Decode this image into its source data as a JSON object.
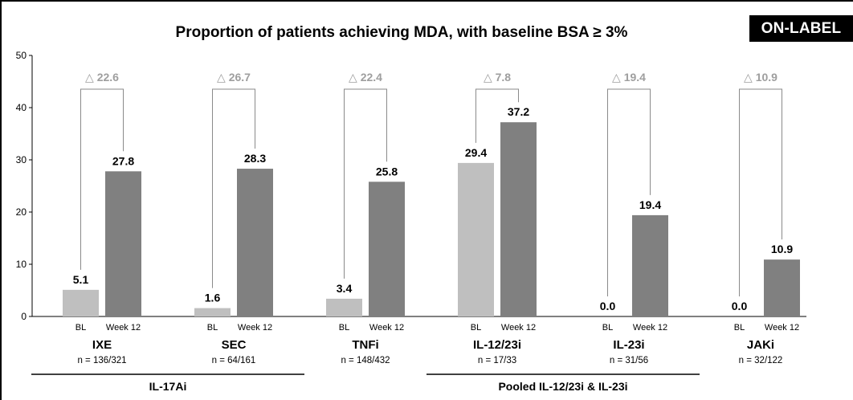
{
  "badge": "ON-LABEL",
  "chart_data": {
    "type": "bar",
    "title": "Proportion of patients achieving MDA, with baseline BSA ≥ 3%",
    "ylim": [
      0,
      50
    ],
    "yticks": [
      0,
      10,
      20,
      30,
      40,
      50
    ],
    "grid": false,
    "subcategories": [
      "BL",
      "Week 12"
    ],
    "colors": {
      "BL": "#bfbfbf",
      "Week 12": "#808080",
      "delta": "#9e9e9e"
    },
    "groups": [
      {
        "name": "IXE",
        "n": "n = 136/321",
        "bl": 5.1,
        "bl_label": "5.1",
        "wk12": 27.8,
        "wk12_label": "27.8",
        "delta": "△ 22.6"
      },
      {
        "name": "SEC",
        "n": "n = 64/161",
        "bl": 1.6,
        "bl_label": "1.6",
        "wk12": 28.3,
        "wk12_label": "28.3",
        "delta": "△ 26.7"
      },
      {
        "name": "TNFi",
        "n": "n = 148/432",
        "bl": 3.4,
        "bl_label": "3.4",
        "wk12": 25.8,
        "wk12_label": "25.8",
        "delta": "△ 22.4"
      },
      {
        "name": "IL-12/23i",
        "n": "n = 17/33",
        "bl": 29.4,
        "bl_label": "29.4",
        "wk12": 37.2,
        "wk12_label": "37.2",
        "delta": "△ 7.8"
      },
      {
        "name": "IL-23i",
        "n": "n = 31/56",
        "bl": 0.0,
        "bl_label": "0.0",
        "wk12": 19.4,
        "wk12_label": "19.4",
        "delta": "△ 19.4"
      },
      {
        "name": "JAKi",
        "n": "n = 32/122",
        "bl": 0.0,
        "bl_label": "0.0",
        "wk12": 10.9,
        "wk12_label": "10.9",
        "delta": "△ 10.9"
      }
    ],
    "class_labels": [
      {
        "label": "IL-17Ai",
        "spans": [
          "IXE",
          "SEC"
        ]
      },
      {
        "label": "Pooled IL-12/23i & IL-23i",
        "spans": [
          "IL-12/23i",
          "IL-23i"
        ]
      }
    ]
  }
}
